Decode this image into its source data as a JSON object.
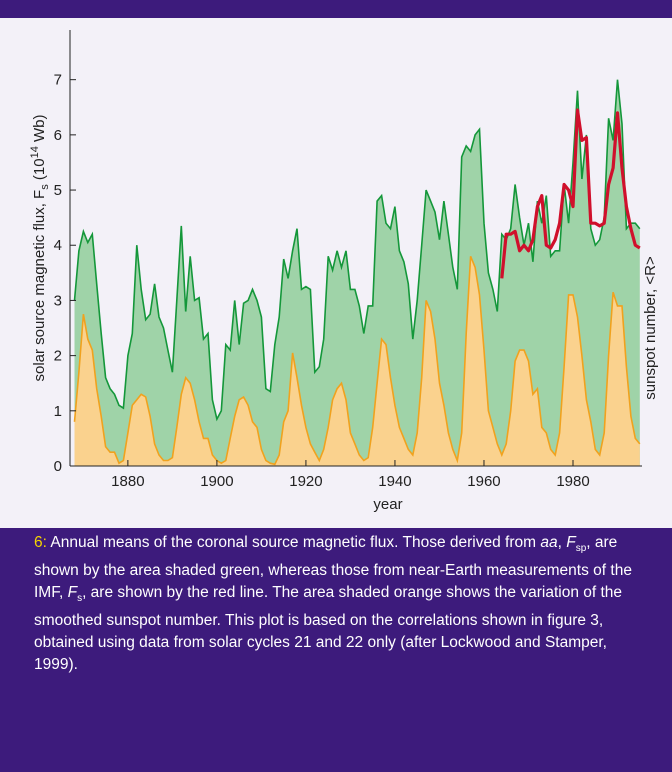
{
  "chart_data": {
    "type": "area",
    "ylabel_parts": [
      "solar source magnetic flux, F",
      "s",
      " (10",
      "14",
      " Wb)"
    ],
    "y2label": "sunspot number, <R>",
    "xlabel": "year",
    "xlim": [
      1867,
      1995.5
    ],
    "xticks": [
      1880,
      1900,
      1920,
      1940,
      1960,
      1980
    ],
    "ylim": [
      0,
      7.9
    ],
    "yticks": [
      0,
      1,
      2,
      3,
      4,
      5,
      6,
      7
    ],
    "x": [
      1868,
      1869,
      1870,
      1871,
      1872,
      1873,
      1874,
      1875,
      1876,
      1877,
      1878,
      1879,
      1880,
      1881,
      1882,
      1883,
      1884,
      1885,
      1886,
      1887,
      1888,
      1889,
      1890,
      1891,
      1892,
      1893,
      1894,
      1895,
      1896,
      1897,
      1898,
      1899,
      1900,
      1901,
      1902,
      1903,
      1904,
      1905,
      1906,
      1907,
      1908,
      1909,
      1910,
      1911,
      1912,
      1913,
      1914,
      1915,
      1916,
      1917,
      1918,
      1919,
      1920,
      1921,
      1922,
      1923,
      1924,
      1925,
      1926,
      1927,
      1928,
      1929,
      1930,
      1931,
      1932,
      1933,
      1934,
      1935,
      1936,
      1937,
      1938,
      1939,
      1940,
      1941,
      1942,
      1943,
      1944,
      1945,
      1946,
      1947,
      1948,
      1949,
      1950,
      1951,
      1952,
      1953,
      1954,
      1955,
      1956,
      1957,
      1958,
      1959,
      1960,
      1961,
      1962,
      1963,
      1964,
      1965,
      1966,
      1967,
      1968,
      1969,
      1970,
      1971,
      1972,
      1973,
      1974,
      1975,
      1976,
      1977,
      1978,
      1979,
      1980,
      1981,
      1982,
      1983,
      1984,
      1985,
      1986,
      1987,
      1988,
      1989,
      1990,
      1991,
      1992,
      1993,
      1994,
      1995
    ],
    "series": [
      {
        "kind": "area",
        "color": "#9fd3a8",
        "stroke": "#14973a",
        "values": [
          3.0,
          3.9,
          4.25,
          4.05,
          4.2,
          3.3,
          2.4,
          1.6,
          1.4,
          1.3,
          1.1,
          1.05,
          2.0,
          2.4,
          4.0,
          3.2,
          2.65,
          2.75,
          3.3,
          2.7,
          2.5,
          2.1,
          1.7,
          3.0,
          4.35,
          2.8,
          3.8,
          3.0,
          3.05,
          2.3,
          2.4,
          1.2,
          0.85,
          1.0,
          2.2,
          2.1,
          3.0,
          2.2,
          2.95,
          3.0,
          3.2,
          3.0,
          2.7,
          1.4,
          1.35,
          2.2,
          2.7,
          3.75,
          3.4,
          3.9,
          4.3,
          3.2,
          3.25,
          3.2,
          1.7,
          1.8,
          2.3,
          3.8,
          3.55,
          3.9,
          3.6,
          3.9,
          3.2,
          3.2,
          2.9,
          2.4,
          2.9,
          2.9,
          4.8,
          4.9,
          4.4,
          4.3,
          4.7,
          3.9,
          3.7,
          3.3,
          2.3,
          3.0,
          4.0,
          5.0,
          4.8,
          4.6,
          4.1,
          4.8,
          4.2,
          3.6,
          3.2,
          5.6,
          5.8,
          5.7,
          6.0,
          6.1,
          4.4,
          3.5,
          3.2,
          2.8,
          4.2,
          4.1,
          4.3,
          5.1,
          4.5,
          4.0,
          4.4,
          3.7,
          4.8,
          4.4,
          4.9,
          3.8,
          3.9,
          3.9,
          5.1,
          4.4,
          5.5,
          6.8,
          5.2,
          6.0,
          4.3,
          4.0,
          4.1,
          4.5,
          6.3,
          5.9,
          7.0,
          6.2,
          4.3,
          4.4,
          4.4,
          4.3
        ]
      },
      {
        "kind": "area",
        "color": "#fad28e",
        "stroke": "#f0a21e",
        "values": [
          0.8,
          1.7,
          2.75,
          2.3,
          2.1,
          1.4,
          0.9,
          0.35,
          0.25,
          0.25,
          0.05,
          0.1,
          0.6,
          1.1,
          1.2,
          1.3,
          1.25,
          0.9,
          0.4,
          0.2,
          0.1,
          0.1,
          0.15,
          0.7,
          1.3,
          1.6,
          1.5,
          1.2,
          0.8,
          0.5,
          0.5,
          0.2,
          0.1,
          0.05,
          0.1,
          0.5,
          0.9,
          1.2,
          1.25,
          1.1,
          0.8,
          0.7,
          0.3,
          0.1,
          0.05,
          0.03,
          0.2,
          0.8,
          1.0,
          2.05,
          1.6,
          1.1,
          0.7,
          0.4,
          0.25,
          0.1,
          0.3,
          0.7,
          1.2,
          1.4,
          1.5,
          1.2,
          0.6,
          0.4,
          0.2,
          0.1,
          0.15,
          0.7,
          1.5,
          2.3,
          2.2,
          1.6,
          1.1,
          0.7,
          0.5,
          0.3,
          0.2,
          0.6,
          1.6,
          3.0,
          2.8,
          2.3,
          1.5,
          1.1,
          0.6,
          0.3,
          0.1,
          0.6,
          2.4,
          3.8,
          3.6,
          3.1,
          2.1,
          1.0,
          0.7,
          0.4,
          0.2,
          0.4,
          1.0,
          1.9,
          2.1,
          2.1,
          1.9,
          1.3,
          1.4,
          0.7,
          0.6,
          0.3,
          0.2,
          0.6,
          1.8,
          3.1,
          3.1,
          2.7,
          2.0,
          1.2,
          0.8,
          0.3,
          0.2,
          0.6,
          2.0,
          3.15,
          2.9,
          2.9,
          1.8,
          0.9,
          0.5,
          0.4
        ]
      },
      {
        "kind": "line",
        "color": "#d0102c",
        "x": [
          1964,
          1965,
          1966,
          1967,
          1968,
          1969,
          1970,
          1971,
          1972,
          1973,
          1974,
          1975,
          1976,
          1977,
          1978,
          1979,
          1980,
          1981,
          1982,
          1983,
          1984,
          1985,
          1986,
          1987,
          1988,
          1989,
          1990,
          1991,
          1992,
          1993,
          1994,
          1995
        ],
        "values": [
          3.4,
          4.2,
          4.2,
          4.25,
          3.9,
          4.0,
          3.9,
          4.1,
          4.7,
          4.9,
          4.0,
          3.95,
          4.1,
          4.4,
          5.1,
          5.0,
          4.7,
          6.45,
          5.9,
          5.95,
          4.4,
          4.4,
          4.35,
          4.4,
          5.1,
          5.4,
          6.4,
          5.4,
          4.7,
          4.3,
          4.0,
          3.95
        ]
      }
    ]
  },
  "caption": {
    "number": "6:",
    "parts": [
      " Annual means of the coronal source magnetic flux. Those derived from ",
      "aa",
      ", ",
      "F",
      "sp",
      ", are shown by the area shaded green, whereas those from near-Earth measurements of the IMF, ",
      "F",
      "s",
      ", are shown by the red line. The area shaded orange shows the variation of the smoothed sunspot number. This plot is based on the correlations shown in figure 3, obtained using data from solar cycles 21 and 22 only (after Lockwood and Stamper, 1999)."
    ]
  }
}
